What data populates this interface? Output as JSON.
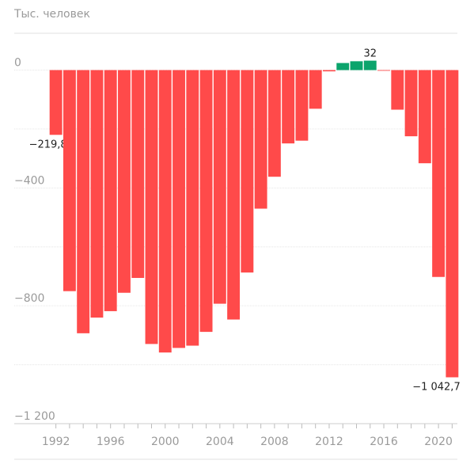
{
  "chart_data": {
    "type": "bar",
    "y_label": "Тыс. человек",
    "categories": [
      1992,
      null,
      null,
      null,
      1996,
      null,
      null,
      null,
      2000,
      null,
      null,
      null,
      2004,
      null,
      null,
      null,
      2008,
      null,
      null,
      null,
      2012,
      null,
      null,
      null,
      2016,
      null,
      null,
      null,
      2020,
      null
    ],
    "values": [
      -219.8,
      -750.3,
      -893.2,
      -840.0,
      -818.2,
      -755.8,
      -705.4,
      -929.6,
      -958.5,
      -943.0,
      -935.3,
      -888.5,
      -793.0,
      -846.6,
      -687.1,
      -470.3,
      -362.0,
      -248.9,
      -239.6,
      -131.2,
      -4.3,
      24.0,
      30.0,
      32.0,
      -2.3,
      -134.4,
      -224.6,
      -316.2,
      -702.1,
      -1042.7
    ],
    "value_labels": [
      "−219,8",
      null,
      null,
      null,
      null,
      null,
      null,
      null,
      null,
      null,
      null,
      null,
      null,
      null,
      null,
      null,
      null,
      null,
      null,
      null,
      null,
      null,
      null,
      "32",
      null,
      null,
      null,
      null,
      null,
      "−1 042,7"
    ],
    "negative_color": "#ff4a4a",
    "positive_color": "#0ba46c",
    "ylim": [
      -1200,
      125
    ],
    "yticks": [
      0,
      {
        "value": -400,
        "label": "−400"
      },
      {
        "value": -800,
        "label": "−800"
      },
      {
        "value": -1200,
        "label": "−1 200"
      }
    ],
    "minor_yticks": [
      -200,
      -600,
      -1000
    ],
    "grid": true
  }
}
